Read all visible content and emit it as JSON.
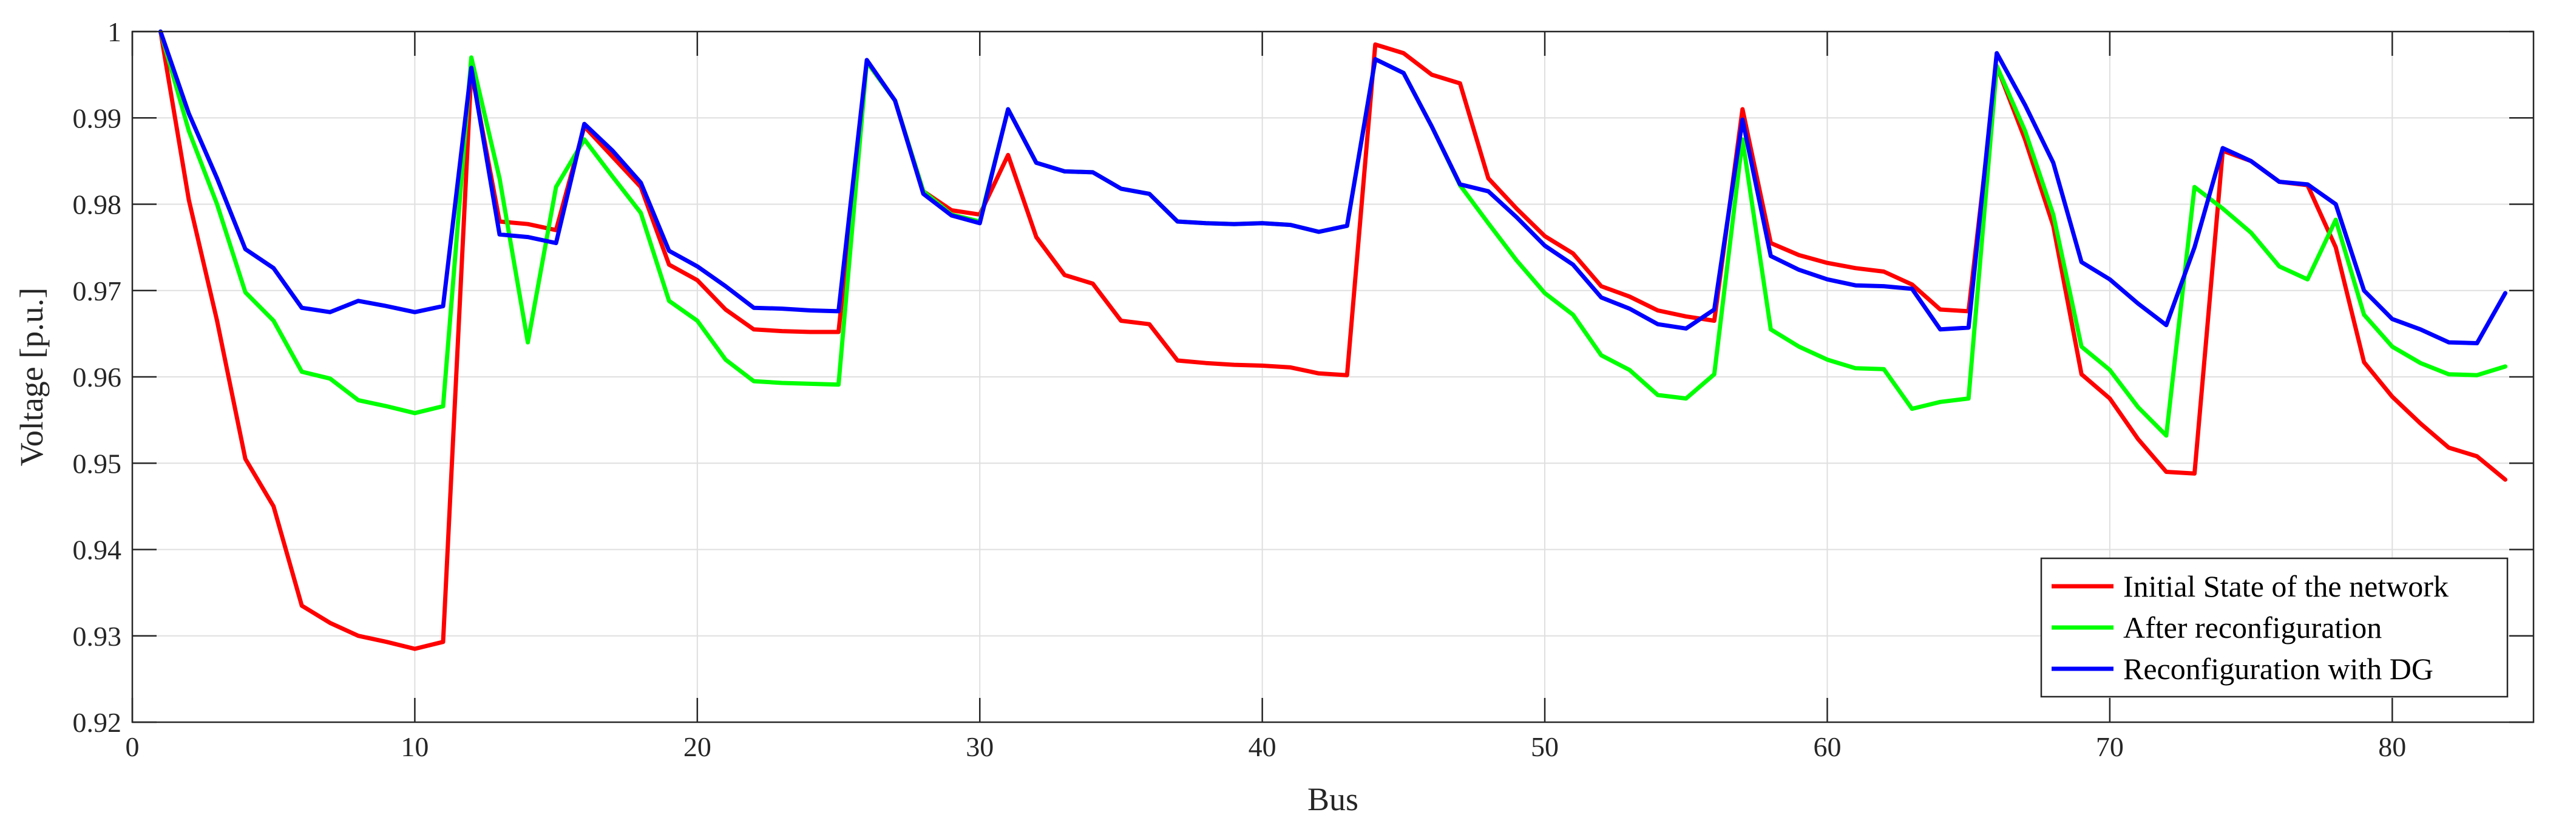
{
  "chart_data": {
    "type": "line",
    "title": "",
    "xlabel": "Bus",
    "ylabel": "Voltage [p.u.]",
    "xlim": [
      0,
      85
    ],
    "ylim": [
      0.92,
      1
    ],
    "x_ticks": [
      0,
      10,
      20,
      30,
      40,
      50,
      60,
      70,
      80
    ],
    "x_tick_labels": [
      "0",
      "10",
      "20",
      "30",
      "40",
      "50",
      "60",
      "70",
      "80"
    ],
    "y_ticks": [
      0.92,
      0.93,
      0.94,
      0.95,
      0.96,
      0.97,
      0.98,
      0.99,
      1
    ],
    "y_tick_labels": [
      "0.92",
      "0.93",
      "0.94",
      "0.95",
      "0.96",
      "0.97",
      "0.98",
      "0.99",
      "1"
    ],
    "grid": true,
    "legend_position": "bottom-right",
    "series": [
      {
        "name": "Initial State of the network",
        "color": "#ff0000",
        "points": [
          [
            1,
            1.0
          ],
          [
            2,
            0.9805
          ],
          [
            3,
            0.9665
          ],
          [
            4,
            0.9505
          ],
          [
            5,
            0.945
          ],
          [
            6,
            0.9335
          ],
          [
            7,
            0.9315
          ],
          [
            8,
            0.93
          ],
          [
            9,
            0.9293
          ],
          [
            10,
            0.9285
          ],
          [
            11,
            0.9293
          ],
          [
            12,
            0.9955
          ],
          [
            13,
            0.978
          ],
          [
            14,
            0.9777
          ],
          [
            15,
            0.977
          ],
          [
            16,
            0.989
          ],
          [
            17,
            0.9855
          ],
          [
            18,
            0.982
          ],
          [
            19,
            0.973
          ],
          [
            20,
            0.9712
          ],
          [
            21,
            0.9678
          ],
          [
            22,
            0.9655
          ],
          [
            23,
            0.9653
          ],
          [
            24,
            0.9652
          ],
          [
            25,
            0.9652
          ],
          [
            26,
            0.9965
          ],
          [
            27,
            0.992
          ],
          [
            28,
            0.9815
          ],
          [
            29,
            0.9793
          ],
          [
            30,
            0.9788
          ],
          [
            31,
            0.9857
          ],
          [
            32,
            0.9762
          ],
          [
            33,
            0.9718
          ],
          [
            34,
            0.9708
          ],
          [
            35,
            0.9665
          ],
          [
            36,
            0.9661
          ],
          [
            37,
            0.9619
          ],
          [
            38,
            0.9616
          ],
          [
            39,
            0.9614
          ],
          [
            40,
            0.9613
          ],
          [
            41,
            0.9611
          ],
          [
            42,
            0.9604
          ],
          [
            43,
            0.9602
          ],
          [
            44,
            0.9985
          ],
          [
            45,
            0.9975
          ],
          [
            46,
            0.995
          ],
          [
            47,
            0.994
          ],
          [
            48,
            0.983
          ],
          [
            49,
            0.9795
          ],
          [
            50,
            0.9763
          ],
          [
            51,
            0.9743
          ],
          [
            52,
            0.9705
          ],
          [
            53,
            0.9693
          ],
          [
            54,
            0.9677
          ],
          [
            55,
            0.967
          ],
          [
            56,
            0.9665
          ],
          [
            57,
            0.991
          ],
          [
            58,
            0.9755
          ],
          [
            59,
            0.9741
          ],
          [
            60,
            0.9732
          ],
          [
            61,
            0.9726
          ],
          [
            62,
            0.9722
          ],
          [
            63,
            0.9707
          ],
          [
            64,
            0.9678
          ],
          [
            65,
            0.9676
          ],
          [
            66,
            0.996
          ],
          [
            67,
            0.9875
          ],
          [
            68,
            0.9775
          ],
          [
            69,
            0.9603
          ],
          [
            70,
            0.9575
          ],
          [
            71,
            0.9528
          ],
          [
            72,
            0.949
          ],
          [
            73,
            0.9488
          ],
          [
            74,
            0.9862
          ],
          [
            75,
            0.985
          ],
          [
            76,
            0.9826
          ],
          [
            77,
            0.9822
          ],
          [
            78,
            0.975
          ],
          [
            79,
            0.9617
          ],
          [
            80,
            0.9577
          ],
          [
            81,
            0.9546
          ],
          [
            82,
            0.9518
          ],
          [
            83,
            0.9508
          ],
          [
            84,
            0.9481
          ]
        ]
      },
      {
        "name": "After reconfiguration",
        "color": "#00ff00",
        "points": [
          [
            1,
            1.0
          ],
          [
            2,
            0.9885
          ],
          [
            3,
            0.98
          ],
          [
            4,
            0.9698
          ],
          [
            5,
            0.9665
          ],
          [
            6,
            0.9606
          ],
          [
            7,
            0.9598
          ],
          [
            8,
            0.9573
          ],
          [
            9,
            0.9566
          ],
          [
            10,
            0.9558
          ],
          [
            11,
            0.9566
          ],
          [
            12,
            0.997
          ],
          [
            13,
            0.983
          ],
          [
            14,
            0.964
          ],
          [
            15,
            0.982
          ],
          [
            16,
            0.9875
          ],
          [
            17,
            0.9832
          ],
          [
            18,
            0.979
          ],
          [
            19,
            0.9688
          ],
          [
            20,
            0.9665
          ],
          [
            21,
            0.962
          ],
          [
            22,
            0.9595
          ],
          [
            23,
            0.9593
          ],
          [
            24,
            0.9592
          ],
          [
            25,
            0.9591
          ],
          [
            26,
            0.9965
          ],
          [
            27,
            0.992
          ],
          [
            28,
            0.9815
          ],
          [
            29,
            0.9788
          ],
          [
            30,
            0.978
          ],
          [
            31,
            0.991
          ],
          [
            32,
            0.9848
          ],
          [
            33,
            0.9838
          ],
          [
            34,
            0.9837
          ],
          [
            35,
            0.9818
          ],
          [
            36,
            0.9812
          ],
          [
            37,
            0.978
          ],
          [
            38,
            0.9778
          ],
          [
            39,
            0.9777
          ],
          [
            40,
            0.9778
          ],
          [
            41,
            0.9776
          ],
          [
            42,
            0.9768
          ],
          [
            43,
            0.9775
          ],
          [
            44,
            0.9968
          ],
          [
            45,
            0.9952
          ],
          [
            46,
            0.989
          ],
          [
            47,
            0.9822
          ],
          [
            48,
            0.9778
          ],
          [
            49,
            0.9735
          ],
          [
            50,
            0.9697
          ],
          [
            51,
            0.9672
          ],
          [
            52,
            0.9625
          ],
          [
            53,
            0.9608
          ],
          [
            54,
            0.9579
          ],
          [
            55,
            0.9575
          ],
          [
            56,
            0.9603
          ],
          [
            57,
            0.9875
          ],
          [
            58,
            0.9655
          ],
          [
            59,
            0.9635
          ],
          [
            60,
            0.962
          ],
          [
            61,
            0.961
          ],
          [
            62,
            0.9609
          ],
          [
            63,
            0.9563
          ],
          [
            64,
            0.9571
          ],
          [
            65,
            0.9575
          ],
          [
            66,
            0.996
          ],
          [
            67,
            0.9885
          ],
          [
            68,
            0.9788
          ],
          [
            69,
            0.9635
          ],
          [
            70,
            0.9608
          ],
          [
            71,
            0.9565
          ],
          [
            72,
            0.9532
          ],
          [
            73,
            0.982
          ],
          [
            74,
            0.9795
          ],
          [
            75,
            0.9767
          ],
          [
            76,
            0.9728
          ],
          [
            77,
            0.9713
          ],
          [
            78,
            0.9782
          ],
          [
            79,
            0.9672
          ],
          [
            80,
            0.9635
          ],
          [
            81,
            0.9616
          ],
          [
            82,
            0.9603
          ],
          [
            83,
            0.9602
          ],
          [
            84,
            0.9612
          ]
        ]
      },
      {
        "name": "Reconfiguration with DG",
        "color": "#0000ff",
        "points": [
          [
            1,
            1.0
          ],
          [
            2,
            0.9905
          ],
          [
            3,
            0.983
          ],
          [
            4,
            0.9748
          ],
          [
            5,
            0.9726
          ],
          [
            6,
            0.968
          ],
          [
            7,
            0.9675
          ],
          [
            8,
            0.9688
          ],
          [
            9,
            0.9682
          ],
          [
            10,
            0.9675
          ],
          [
            11,
            0.9682
          ],
          [
            12,
            0.9958
          ],
          [
            13,
            0.9765
          ],
          [
            14,
            0.9762
          ],
          [
            15,
            0.9755
          ],
          [
            16,
            0.9893
          ],
          [
            17,
            0.9862
          ],
          [
            18,
            0.9825
          ],
          [
            19,
            0.9746
          ],
          [
            20,
            0.9728
          ],
          [
            21,
            0.9705
          ],
          [
            22,
            0.968
          ],
          [
            23,
            0.9679
          ],
          [
            24,
            0.9677
          ],
          [
            25,
            0.9676
          ],
          [
            26,
            0.9967
          ],
          [
            27,
            0.992
          ],
          [
            28,
            0.9812
          ],
          [
            29,
            0.9787
          ],
          [
            30,
            0.9778
          ],
          [
            31,
            0.991
          ],
          [
            32,
            0.9848
          ],
          [
            33,
            0.9838
          ],
          [
            34,
            0.9837
          ],
          [
            35,
            0.9818
          ],
          [
            36,
            0.9812
          ],
          [
            37,
            0.978
          ],
          [
            38,
            0.9778
          ],
          [
            39,
            0.9777
          ],
          [
            40,
            0.9778
          ],
          [
            41,
            0.9776
          ],
          [
            42,
            0.9768
          ],
          [
            43,
            0.9775
          ],
          [
            44,
            0.9968
          ],
          [
            45,
            0.9952
          ],
          [
            46,
            0.989
          ],
          [
            47,
            0.9823
          ],
          [
            48,
            0.9815
          ],
          [
            49,
            0.9785
          ],
          [
            50,
            0.9752
          ],
          [
            51,
            0.973
          ],
          [
            52,
            0.9692
          ],
          [
            53,
            0.9679
          ],
          [
            54,
            0.9661
          ],
          [
            55,
            0.9656
          ],
          [
            56,
            0.9678
          ],
          [
            57,
            0.9898
          ],
          [
            58,
            0.974
          ],
          [
            59,
            0.9724
          ],
          [
            60,
            0.9713
          ],
          [
            61,
            0.9706
          ],
          [
            62,
            0.9705
          ],
          [
            63,
            0.9702
          ],
          [
            64,
            0.9655
          ],
          [
            65,
            0.9657
          ],
          [
            66,
            0.9975
          ],
          [
            67,
            0.9915
          ],
          [
            68,
            0.9848
          ],
          [
            69,
            0.9733
          ],
          [
            70,
            0.9713
          ],
          [
            71,
            0.9685
          ],
          [
            72,
            0.966
          ],
          [
            73,
            0.975
          ],
          [
            74,
            0.9865
          ],
          [
            75,
            0.985
          ],
          [
            76,
            0.9826
          ],
          [
            77,
            0.9823
          ],
          [
            78,
            0.98
          ],
          [
            79,
            0.97
          ],
          [
            80,
            0.9667
          ],
          [
            81,
            0.9655
          ],
          [
            82,
            0.964
          ],
          [
            83,
            0.9639
          ],
          [
            84,
            0.9697
          ]
        ]
      }
    ]
  }
}
